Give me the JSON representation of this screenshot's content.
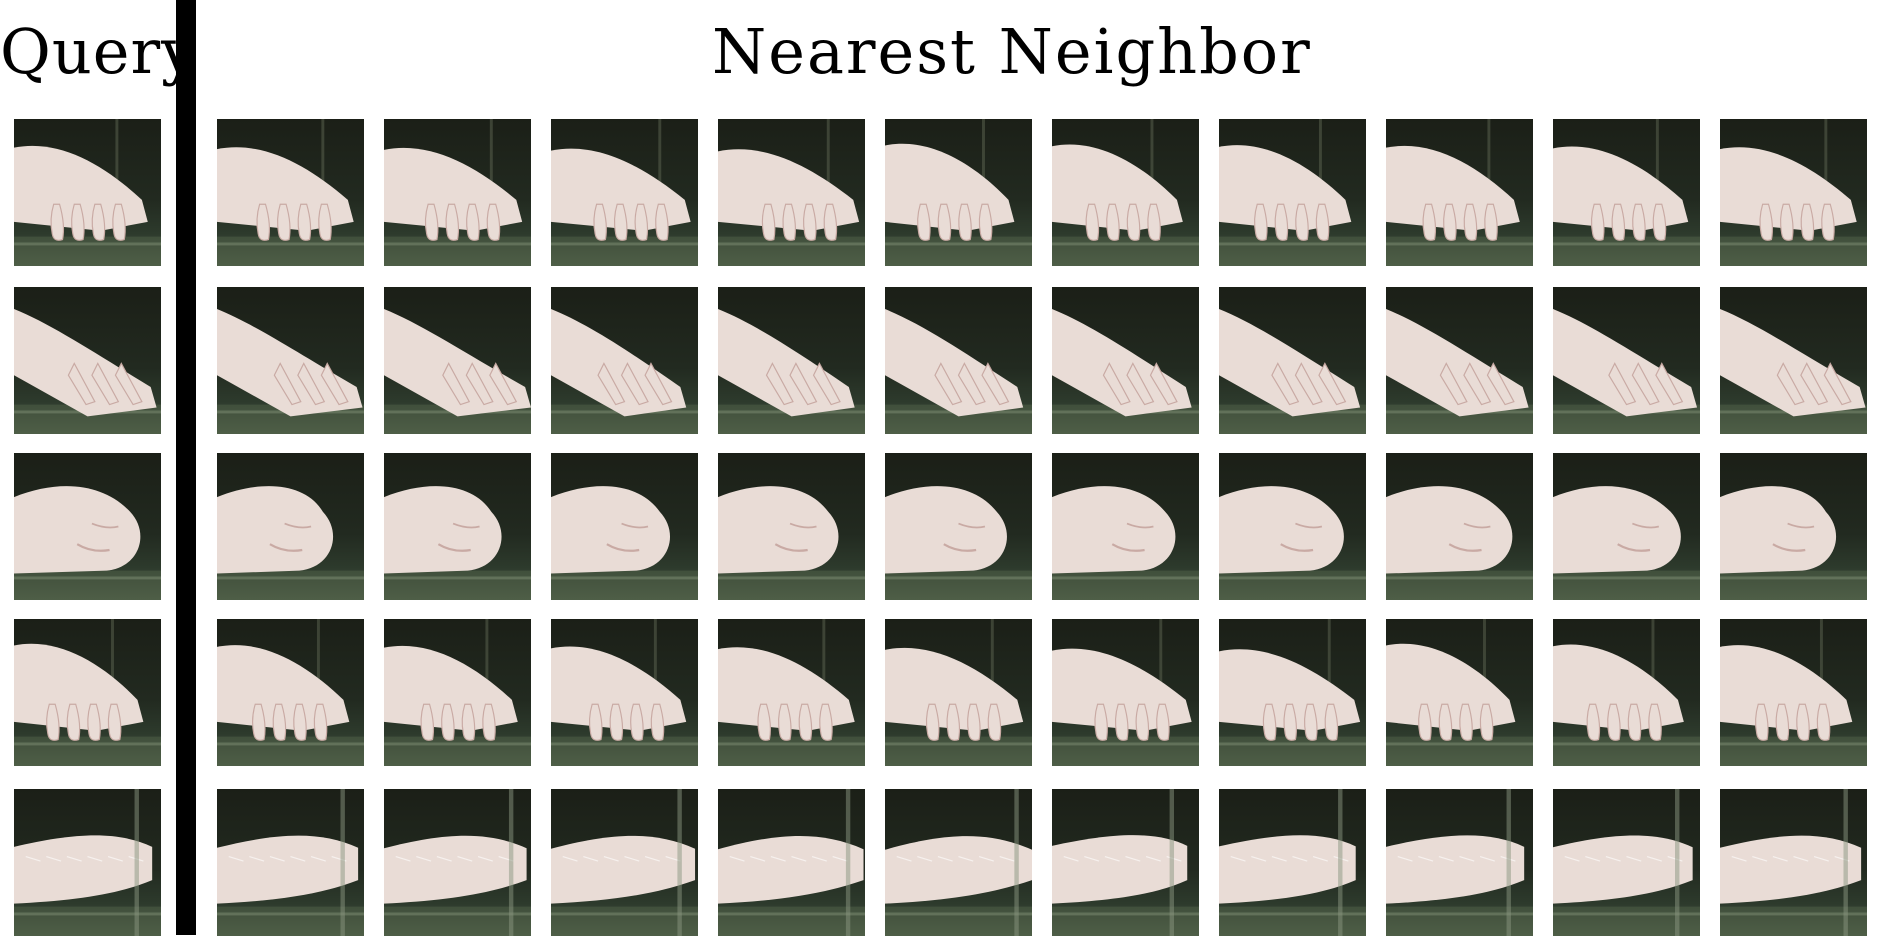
{
  "headers": {
    "query": "Query",
    "neighbors": "Nearest Neighbor"
  },
  "rows": [
    {
      "pose": "paw-fingers-down",
      "query_label": "query-paw-image",
      "neighbor_count": 10
    },
    {
      "pose": "paw-reaching-angled",
      "query_label": "query-paw-image",
      "neighbor_count": 10
    },
    {
      "pose": "paw-closed-fist",
      "query_label": "query-paw-image",
      "neighbor_count": 10
    },
    {
      "pose": "paw-flat-extended",
      "query_label": "query-paw-image",
      "neighbor_count": 10
    },
    {
      "pose": "paw-side-arm",
      "query_label": "query-paw-image",
      "neighbor_count": 10
    }
  ],
  "colors": {
    "background": "#ffffff",
    "divider": "#000000",
    "paw": "#e9dcd6",
    "paw_shadow": "#c9aaa4",
    "scene_dark": "#1b1f17",
    "ledge": "#4f5e47"
  }
}
